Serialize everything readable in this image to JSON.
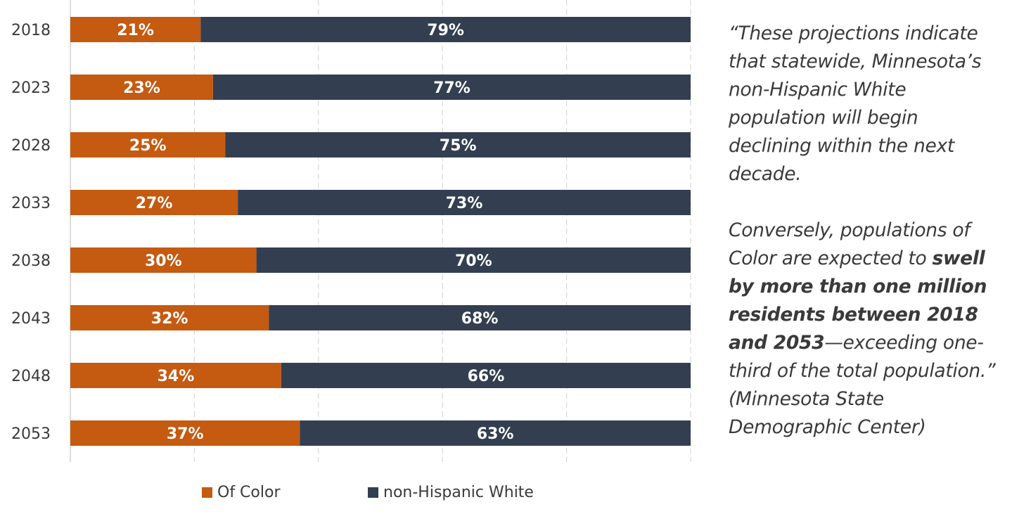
{
  "chart_data": {
    "type": "bar",
    "orientation": "horizontal",
    "stacked": true,
    "percent_stacked": true,
    "categories": [
      "2018",
      "2023",
      "2028",
      "2033",
      "2038",
      "2043",
      "2048",
      "2053"
    ],
    "series": [
      {
        "name": "Of Color",
        "color": "#C55A11",
        "values": [
          21,
          23,
          25,
          27,
          30,
          32,
          34,
          37
        ],
        "labels": [
          "21%",
          "23%",
          "25%",
          "27%",
          "30%",
          "32%",
          "34%",
          "37%"
        ]
      },
      {
        "name": "non-Hispanic White",
        "color": "#333F50",
        "values": [
          79,
          77,
          75,
          73,
          70,
          68,
          66,
          63
        ],
        "labels": [
          "79%",
          "77%",
          "75%",
          "73%",
          "70%",
          "68%",
          "66%",
          "63%"
        ]
      }
    ],
    "xlim": [
      0,
      100
    ],
    "grid": "vertical dashed",
    "legend_position": "bottom"
  },
  "quote": {
    "p1": "“These projections indicate that statewide, Minnesota’s non-Hispanic White population will begin declining within the next decade.",
    "p2_start": "Conversely, populations of Color are expected to ",
    "p2_bold": "swell by more than one million residents between 2018 and 2053",
    "p2_end": "—exceeding one-third of the total population.” (Minnesota State Demographic Center)"
  },
  "legend": {
    "of_color": "Of Color",
    "white": "non-Hispanic White"
  },
  "colors": {
    "of_color": "#C55A11",
    "white": "#333F50"
  }
}
